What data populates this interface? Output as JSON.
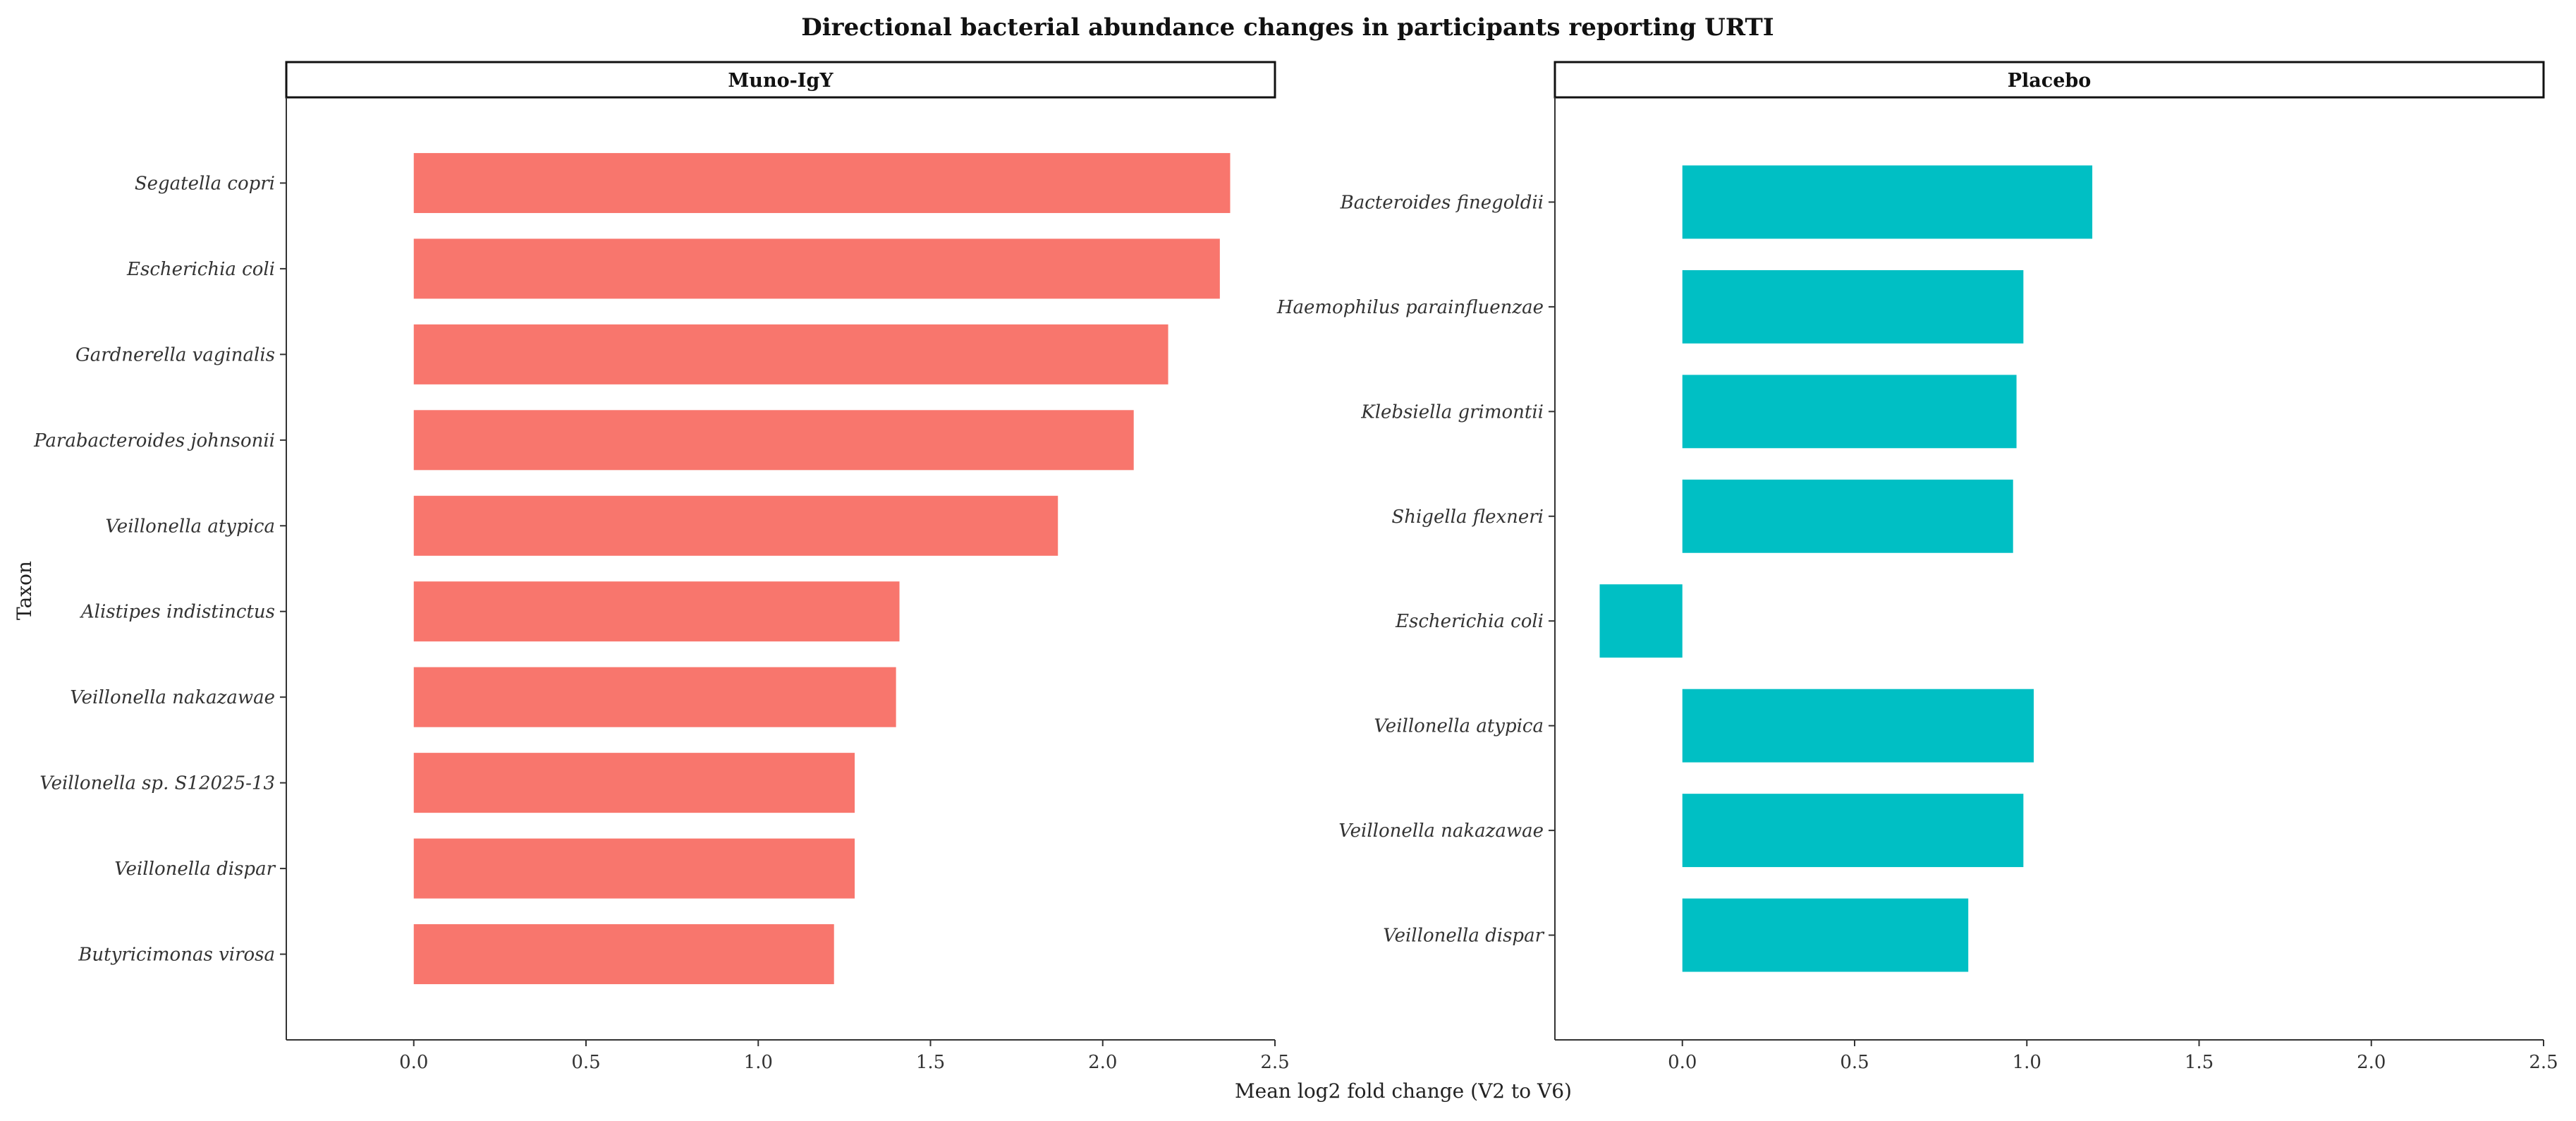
{
  "chart_data": {
    "type": "bar",
    "orientation": "horizontal",
    "title": "Directional bacterial abundance changes in participants reporting URTI",
    "xlabel": "Mean log2 fold change (V2 to V6)",
    "ylabel": "Taxon",
    "xlim": [
      -0.37,
      2.5
    ],
    "xticks": [
      "0.0",
      "0.5",
      "1.0",
      "1.5",
      "2.0",
      "2.5"
    ],
    "grid": false,
    "panels": [
      {
        "name": "Muno-IgY",
        "color": "#F8766D",
        "categories": [
          "Segatella copri",
          "Escherichia coli",
          "Gardnerella vaginalis",
          "Parabacteroides johnsonii",
          "Veillonella atypica",
          "Alistipes indistinctus",
          "Veillonella nakazawae",
          "Veillonella sp. S12025-13",
          "Veillonella dispar",
          "Butyricimonas virosa"
        ],
        "values": [
          2.37,
          2.34,
          2.19,
          2.09,
          1.87,
          1.41,
          1.4,
          1.28,
          1.28,
          1.22
        ]
      },
      {
        "name": "Placebo",
        "color": "#00BFC4",
        "categories": [
          "Bacteroides finegoldii",
          "Haemophilus parainfluenzae",
          "Klebsiella grimontii",
          "Shigella flexneri",
          "Escherichia coli",
          "Veillonella atypica",
          "Veillonella nakazawae",
          "Veillonella dispar"
        ],
        "values": [
          1.19,
          0.99,
          0.97,
          0.96,
          -0.24,
          1.02,
          0.99,
          0.83
        ]
      }
    ]
  }
}
